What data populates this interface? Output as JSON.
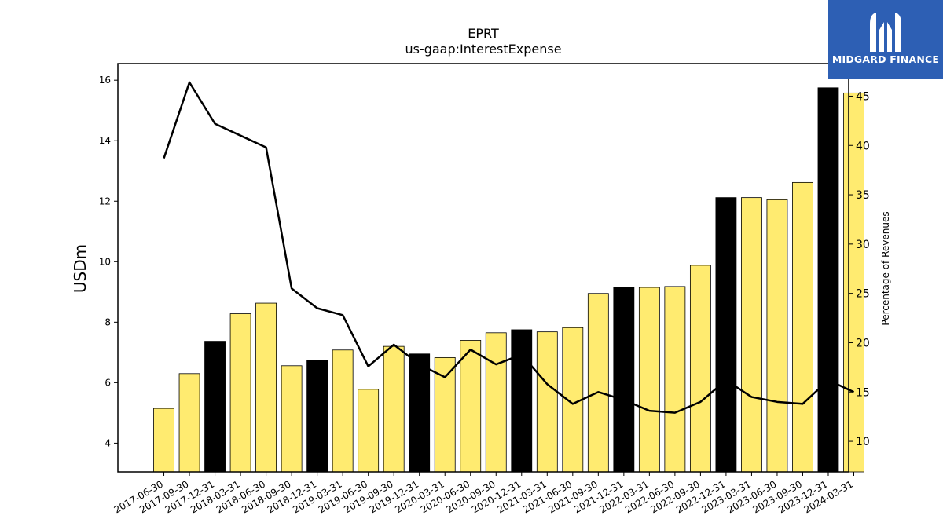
{
  "chart_data": {
    "type": "bar",
    "title": "EPRT",
    "subtitle": "us-gaap:InterestExpense",
    "ylabel": "USDm",
    "y2label": "Percentage of Revenues",
    "ylim": [
      3.05,
      16.55
    ],
    "y2lim": [
      6.9,
      48.3
    ],
    "yticks": [
      4,
      6,
      8,
      10,
      12,
      14,
      16
    ],
    "y2ticks": [
      10,
      15,
      20,
      25,
      30,
      35,
      40,
      45
    ],
    "categories": [
      "2017-06-30",
      "2017-09-30",
      "2017-12-31",
      "2018-03-31",
      "2018-06-30",
      "2018-09-30",
      "2018-12-31",
      "2019-03-31",
      "2019-06-30",
      "2019-09-30",
      "2019-12-31",
      "2020-03-31",
      "2020-06-30",
      "2020-09-30",
      "2020-12-31",
      "2021-03-31",
      "2021-06-30",
      "2021-09-30",
      "2021-12-31",
      "2022-03-31",
      "2022-06-30",
      "2022-09-30",
      "2022-12-31",
      "2023-03-31",
      "2023-06-30",
      "2023-09-30",
      "2023-12-31",
      "2024-03-31"
    ],
    "series": [
      {
        "type": "bar",
        "axis": "left",
        "values": [
          5.15,
          6.3,
          7.37,
          8.28,
          8.63,
          6.56,
          6.73,
          7.08,
          5.78,
          7.2,
          6.95,
          6.83,
          7.4,
          7.65,
          7.75,
          7.68,
          7.82,
          8.95,
          9.15,
          9.15,
          9.18,
          9.88,
          12.12,
          12.12,
          12.05,
          12.62,
          15.75,
          15.58
        ],
        "highlight_year_end": [
          false,
          false,
          true,
          false,
          false,
          false,
          true,
          false,
          false,
          false,
          true,
          false,
          false,
          false,
          true,
          false,
          false,
          false,
          true,
          false,
          false,
          false,
          true,
          false,
          false,
          false,
          true,
          false
        ]
      },
      {
        "type": "line",
        "axis": "right",
        "values": [
          38.7,
          46.4,
          42.2,
          41.0,
          39.8,
          25.5,
          23.5,
          22.8,
          17.6,
          19.8,
          17.8,
          16.5,
          19.3,
          17.8,
          18.8,
          15.8,
          13.8,
          15.0,
          14.2,
          13.1,
          12.9,
          14.0,
          16.2,
          14.5,
          14.0,
          13.8,
          16.2,
          15.0
        ]
      }
    ],
    "colors": {
      "bar": "#ffeb70",
      "bar_highlight": "#000000",
      "bar_edge": "#000000",
      "line": "#000000"
    },
    "grid": false
  },
  "logo": {
    "text": "MIDGARD FINANCE",
    "background": "#2d5fb4"
  }
}
